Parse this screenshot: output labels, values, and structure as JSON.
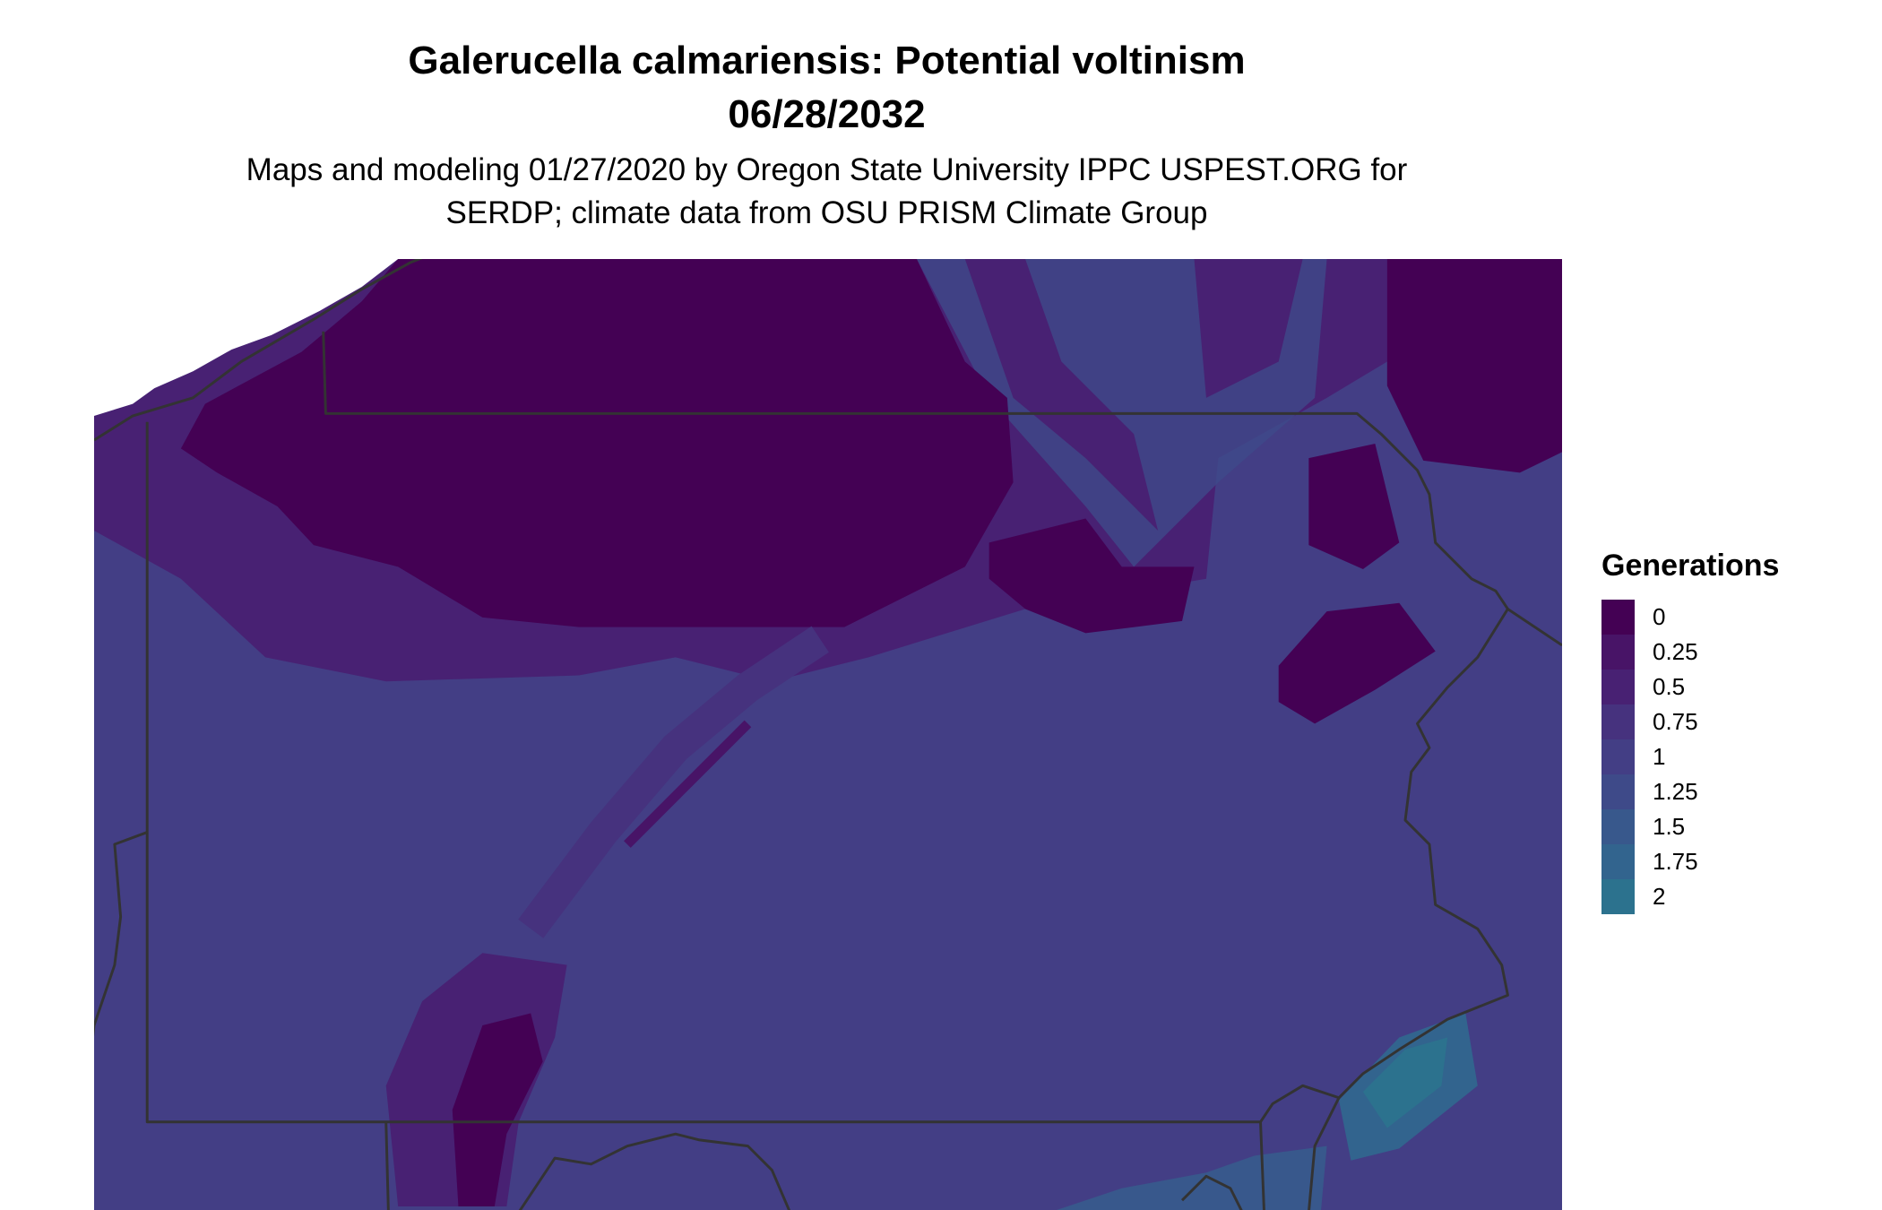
{
  "title": {
    "line1": "Galerucella calmariensis: Potential voltinism",
    "line2": "06/28/2032"
  },
  "subtitle": {
    "line1": "Maps and modeling 01/27/2020 by Oregon State University IPPC USPEST.ORG for",
    "line2": "SERDP; climate data from OSU PRISM Climate Group"
  },
  "legend": {
    "title": "Generations",
    "entries": [
      {
        "label": "0",
        "color": "#440154"
      },
      {
        "label": "0.25",
        "color": "#481467"
      },
      {
        "label": "0.5",
        "color": "#482173"
      },
      {
        "label": "0.75",
        "color": "#46327e"
      },
      {
        "label": "1",
        "color": "#433e85"
      },
      {
        "label": "1.25",
        "color": "#3e4a89"
      },
      {
        "label": "1.5",
        "color": "#38588c"
      },
      {
        "label": "1.75",
        "color": "#32648e"
      },
      {
        "label": "2",
        "color": "#2c728e"
      }
    ]
  },
  "map": {
    "boundary_color": "#333333",
    "background": "#ffffff"
  }
}
